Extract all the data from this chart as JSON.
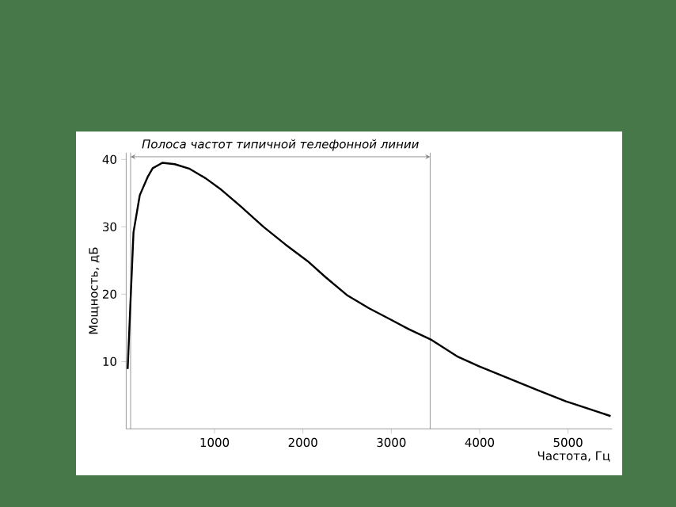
{
  "chart_data": {
    "type": "line",
    "xlabel": "Частота, Гц",
    "ylabel": "Мощность, дБ",
    "x": [
      17,
      47,
      83,
      154,
      243,
      300,
      410,
      550,
      720,
      900,
      1077,
      1300,
      1554,
      1800,
      2054,
      2250,
      2505,
      2750,
      2982,
      3200,
      3457,
      3755,
      3993,
      4648,
      4976,
      5482
    ],
    "values": [
      8.9,
      18.3,
      29.2,
      34.7,
      37.4,
      38.7,
      39.5,
      39.3,
      38.6,
      37.2,
      35.5,
      33,
      30,
      27.4,
      24.9,
      22.6,
      19.8,
      17.9,
      16.3,
      14.8,
      13.2,
      10.7,
      9.3,
      5.8,
      4.1,
      1.9
    ],
    "color": "#000000",
    "xlim": [
      0,
      5500
    ],
    "ylim": [
      0,
      41
    ],
    "xticks": [
      1000,
      2000,
      3000,
      4000,
      5000
    ],
    "yticks": [
      10,
      20,
      30,
      40
    ],
    "ref_lines": [
      {
        "axis": "x",
        "value": 50,
        "color": "#808080"
      },
      {
        "axis": "x",
        "value": 3440,
        "color": "#808080"
      }
    ],
    "annotations": [
      "Полоса частот типичной телефонной линии"
    ]
  }
}
